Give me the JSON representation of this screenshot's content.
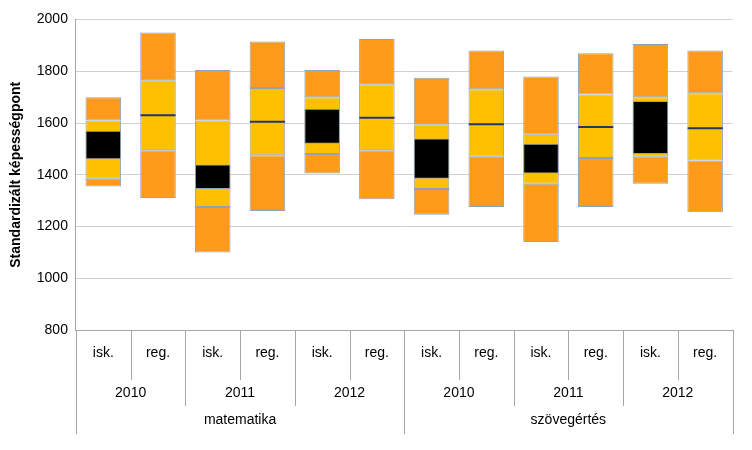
{
  "chart_data": {
    "type": "bar",
    "y_label": "Standardizált képességpont",
    "categories": [
      [
        "matematika",
        "2010",
        "isk."
      ],
      [
        "matematika",
        "2010",
        "reg."
      ],
      [
        "matematika",
        "2011",
        "isk."
      ],
      [
        "matematika",
        "2011",
        "reg."
      ],
      [
        "matematika",
        "2012",
        "isk."
      ],
      [
        "matematika",
        "2012",
        "reg."
      ],
      [
        "szövegértés",
        "2010",
        "isk."
      ],
      [
        "szövegértés",
        "2010",
        "reg."
      ],
      [
        "szövegértés",
        "2011",
        "isk."
      ],
      [
        "szövegértés",
        "2011",
        "reg."
      ],
      [
        "szövegértés",
        "2012",
        "isk."
      ],
      [
        "szövegértés",
        "2012",
        "reg."
      ]
    ],
    "series": [
      {
        "color": "#ff9a1a",
        "values": [
          [
            1355,
            1385
          ],
          [
            1310,
            1495
          ],
          [
            1100,
            1275
          ],
          [
            1260,
            1475
          ],
          [
            1405,
            1480
          ],
          [
            1305,
            1495
          ],
          [
            1245,
            1345
          ],
          [
            1275,
            1470
          ],
          [
            1140,
            1365
          ],
          [
            1275,
            1465
          ],
          [
            1365,
            1470
          ],
          [
            1255,
            1455
          ]
        ]
      },
      {
        "color": "#ffc000",
        "values": [
          [
            1385,
            1610
          ],
          [
            1495,
            1765
          ],
          [
            1275,
            1610
          ],
          [
            1475,
            1735
          ],
          [
            1480,
            1700
          ],
          [
            1495,
            1750
          ],
          [
            1345,
            1595
          ],
          [
            1470,
            1730
          ],
          [
            1365,
            1555
          ],
          [
            1465,
            1710
          ],
          [
            1470,
            1700
          ],
          [
            1455,
            1715
          ]
        ]
      },
      {
        "color": "#ff9a1a",
        "values": [
          [
            1610,
            1700
          ],
          [
            1765,
            1950
          ],
          [
            1610,
            1805
          ],
          [
            1735,
            1915
          ],
          [
            1700,
            1805
          ],
          [
            1750,
            1925
          ],
          [
            1595,
            1775
          ],
          [
            1730,
            1880
          ],
          [
            1555,
            1780
          ],
          [
            1710,
            1870
          ],
          [
            1700,
            1905
          ],
          [
            1715,
            1880
          ]
        ]
      },
      {
        "color": "#000000",
        "values": [
          [
            1460,
            1570
          ],
          null,
          [
            1345,
            1440
          ],
          null,
          [
            1520,
            1655
          ],
          null,
          [
            1385,
            1540
          ],
          null,
          [
            1405,
            1520
          ],
          null,
          [
            1480,
            1685
          ],
          null
        ]
      },
      {
        "type": "line",
        "marker": "line",
        "color": "#1f3864",
        "values": [
          null,
          1630,
          null,
          1605,
          null,
          1620,
          null,
          1595,
          null,
          1585,
          null,
          1580
        ]
      }
    ],
    "ylim": [
      800,
      2000
    ],
    "yticks": [
      800,
      1000,
      1200,
      1400,
      1600,
      1800,
      2000
    ],
    "grid": true
  }
}
